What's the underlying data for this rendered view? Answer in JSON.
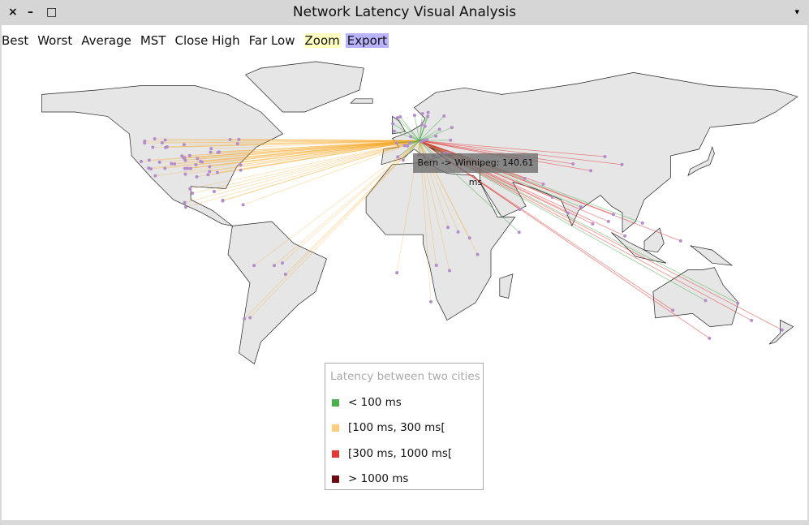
{
  "window": {
    "title": "Network Latency Visual Analysis",
    "close_icon": "×",
    "minimize_icon": "–",
    "maximize_icon": "□",
    "menu_icon": "▾"
  },
  "toolbar": {
    "items": [
      "Best",
      "Worst",
      "Average",
      "MST",
      "Close High",
      "Far Low",
      "Zoom",
      "Export"
    ]
  },
  "tooltip": {
    "text": "Bern -> Winnipeg: 140.61 ms"
  },
  "legend": {
    "title": "Latency between two cities",
    "items": [
      {
        "label": "< 100 ms",
        "color": "#4caf50"
      },
      {
        "label": "[100 ms, 300 ms[",
        "color": "#ffcc80"
      },
      {
        "label": "[300 ms, 1000 ms[",
        "color": "#e53935"
      },
      {
        "label": "> 1000 ms",
        "color": "#6d0a10"
      }
    ]
  },
  "map": {
    "land_color": "#e6e6e6",
    "border_color": "#222222",
    "city_color": "#b48ccc",
    "origin": "Bern"
  }
}
